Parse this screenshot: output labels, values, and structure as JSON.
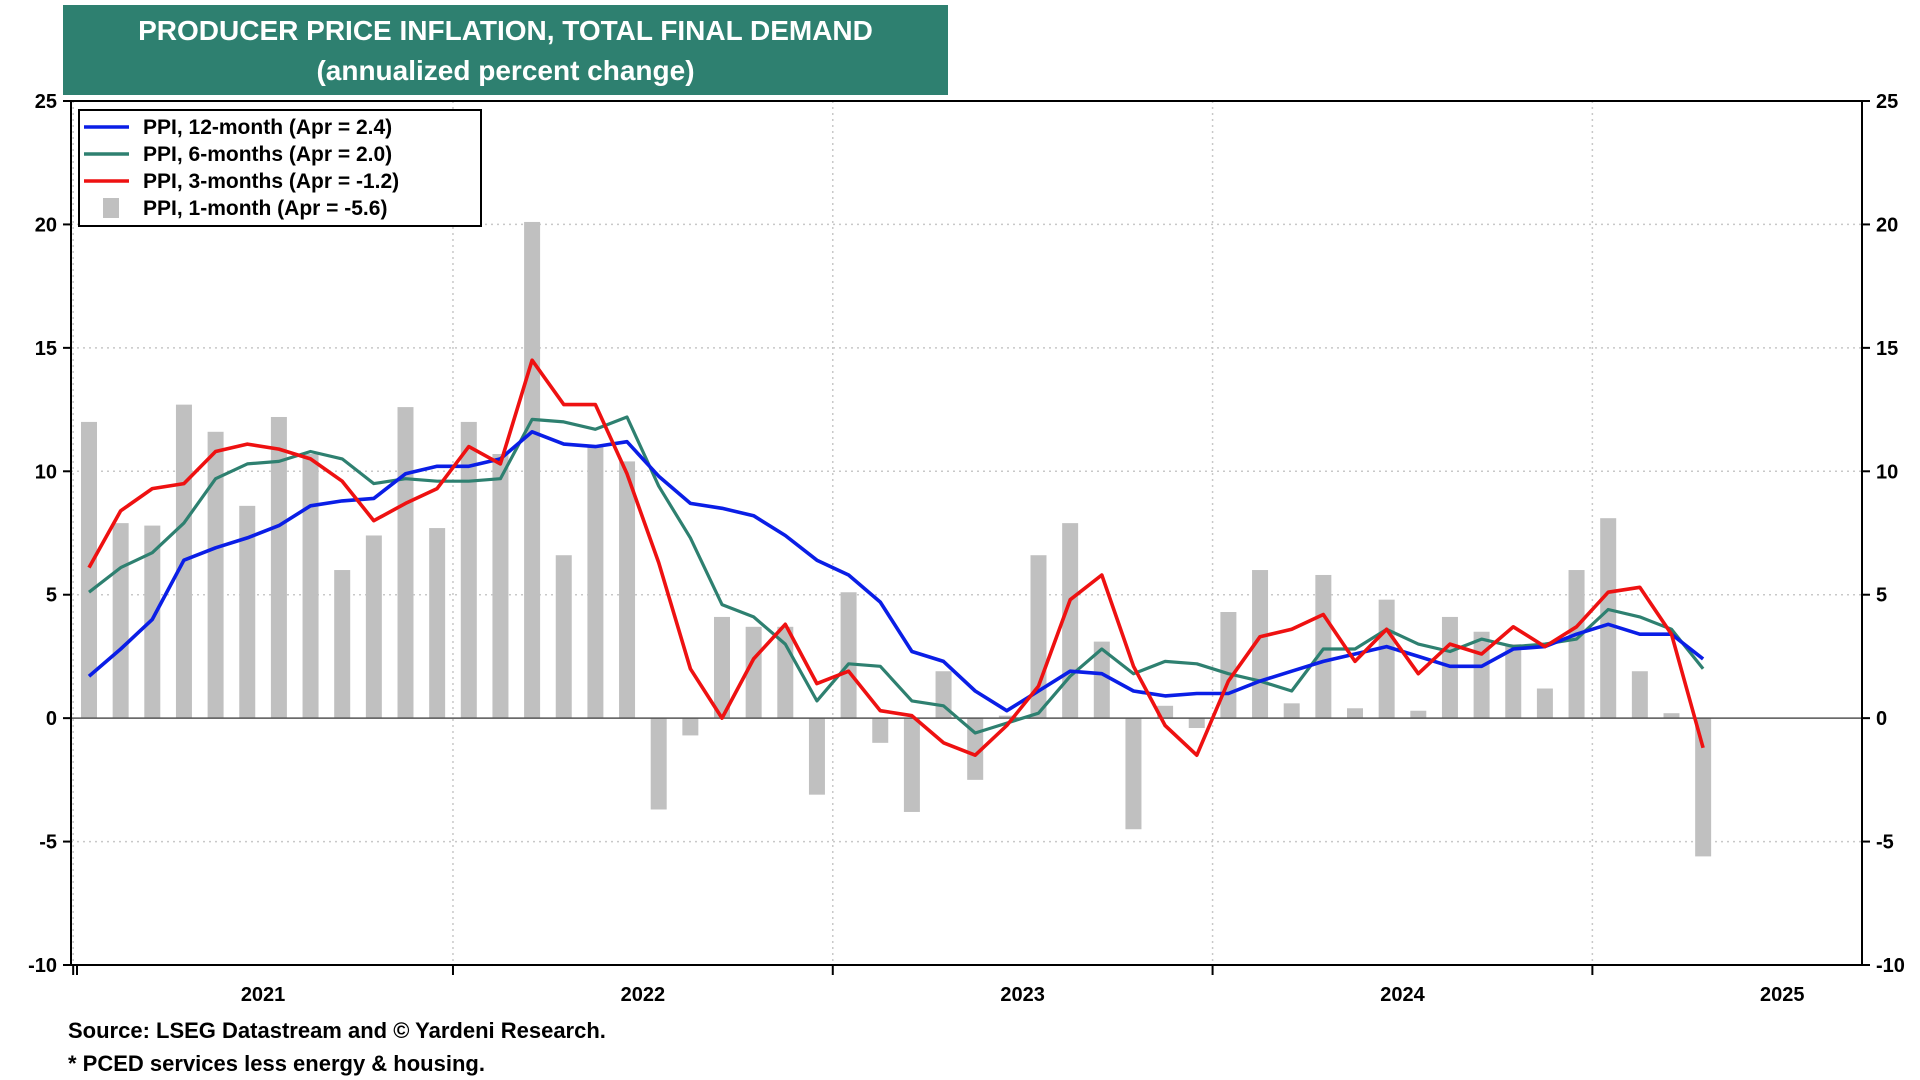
{
  "header": {
    "title": "PRODUCER PRICE INFLATION, TOTAL FINAL DEMAND",
    "subtitle": "(annualized percent change)"
  },
  "footer": {
    "source": "Source: LSEG Datastream and © Yardeni Research.",
    "note": "* PCED services less energy & housing."
  },
  "chart_data": {
    "type": "line",
    "ylim": [
      -10,
      25
    ],
    "yticks": [
      -10,
      -5,
      0,
      5,
      10,
      15,
      20,
      25
    ],
    "ytick_labels": [
      "-10",
      "-5",
      "0",
      "5",
      "10",
      "15",
      "20",
      "25"
    ],
    "year_labels": [
      "2021",
      "2022",
      "2023",
      "2024",
      "2025"
    ],
    "start_month": "2020-12",
    "grid": true,
    "legend_position": "top-left",
    "colors": {
      "ppi_12m": "#0a1ee6",
      "ppi_6m": "#2e8070",
      "ppi_3m": "#ee1111",
      "ppi_1m": "#c0c0c0"
    },
    "series": [
      {
        "key": "ppi_12m",
        "name": "PPI, 12-month (Apr = 2.4)",
        "kind": "line",
        "values": [
          1.7,
          2.8,
          4.0,
          6.4,
          6.9,
          7.3,
          7.8,
          8.6,
          8.8,
          8.9,
          9.9,
          10.2,
          10.2,
          10.5,
          11.6,
          11.1,
          11.0,
          11.2,
          9.8,
          8.7,
          8.5,
          8.2,
          7.4,
          6.4,
          5.8,
          4.7,
          2.7,
          2.3,
          1.1,
          0.3,
          1.1,
          1.9,
          1.8,
          1.1,
          0.9,
          1.0,
          1.0,
          1.5,
          1.9,
          2.3,
          2.6,
          2.9,
          2.5,
          2.1,
          2.1,
          2.8,
          2.9,
          3.4,
          3.8,
          3.4,
          3.4,
          2.4
        ]
      },
      {
        "key": "ppi_6m",
        "name": "PPI, 6-months (Apr = 2.0)",
        "kind": "line",
        "values": [
          5.1,
          6.1,
          6.7,
          7.9,
          9.7,
          10.3,
          10.4,
          10.8,
          10.5,
          9.5,
          9.7,
          9.6,
          9.6,
          9.7,
          12.1,
          12.0,
          11.7,
          12.2,
          9.4,
          7.3,
          4.6,
          4.1,
          3.0,
          0.7,
          2.2,
          2.1,
          0.7,
          0.5,
          -0.6,
          -0.2,
          0.2,
          1.7,
          2.8,
          1.8,
          2.3,
          2.2,
          1.8,
          1.5,
          1.1,
          2.8,
          2.8,
          3.6,
          3.0,
          2.7,
          3.2,
          2.9,
          3.0,
          3.2,
          4.4,
          4.1,
          3.6,
          2.0
        ]
      },
      {
        "key": "ppi_3m",
        "name": "PPI, 3-months (Apr = -1.2)",
        "kind": "line",
        "values": [
          6.1,
          8.4,
          9.3,
          9.5,
          10.8,
          11.1,
          10.9,
          10.5,
          9.6,
          8.0,
          8.7,
          9.3,
          11.0,
          10.3,
          14.5,
          12.7,
          12.7,
          9.9,
          6.3,
          2.0,
          0.0,
          2.4,
          3.8,
          1.4,
          1.9,
          0.3,
          0.1,
          -1.0,
          -1.5,
          -0.3,
          1.3,
          4.8,
          5.8,
          2.1,
          -0.3,
          -1.5,
          1.5,
          3.3,
          3.6,
          4.2,
          2.3,
          3.6,
          1.8,
          3.0,
          2.6,
          3.7,
          2.9,
          3.7,
          5.1,
          5.3,
          3.4,
          -1.2
        ]
      },
      {
        "key": "ppi_1m",
        "name": "PPI, 1-month (Apr = -5.6)",
        "kind": "bar",
        "values": [
          12.0,
          7.9,
          7.8,
          12.7,
          11.6,
          8.6,
          12.2,
          10.7,
          6.0,
          7.4,
          12.6,
          7.7,
          12.0,
          10.7,
          20.1,
          6.6,
          11.0,
          10.4,
          -3.7,
          -0.7,
          4.1,
          3.7,
          3.7,
          -3.1,
          5.1,
          -1.0,
          -3.8,
          1.9,
          -2.5,
          0.1,
          6.6,
          7.9,
          3.1,
          -4.5,
          0.5,
          -0.4,
          4.3,
          6.0,
          0.6,
          5.8,
          0.4,
          4.8,
          0.3,
          4.1,
          3.5,
          3.0,
          1.2,
          6.0,
          8.1,
          1.9,
          0.2,
          -5.6
        ]
      }
    ]
  }
}
